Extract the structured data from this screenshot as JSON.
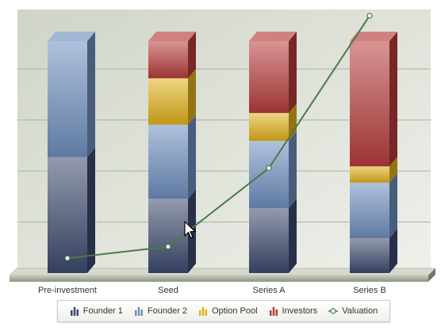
{
  "chart_data": {
    "type": "bar",
    "stacked": true,
    "style": "3d-stacked-columns-with-line-overlay",
    "categories": [
      "Pre-investment",
      "Seed",
      "Series A",
      "Series B"
    ],
    "series": [
      {
        "name": "Founder 1",
        "type": "bar",
        "color": "#3c4a6e",
        "values": [
          50,
          32,
          28,
          15
        ]
      },
      {
        "name": "Founder 2",
        "type": "bar",
        "color": "#6f8fbf",
        "values": [
          50,
          32,
          29,
          24
        ]
      },
      {
        "name": "Option Pool",
        "type": "bar",
        "color": "#e2b21c",
        "values": [
          0,
          20,
          12,
          7
        ]
      },
      {
        "name": "Investors",
        "type": "bar",
        "color": "#b83c3c",
        "values": [
          0,
          16,
          31,
          54
        ]
      },
      {
        "name": "Valuation",
        "type": "line",
        "color": "#4a7a46",
        "values": [
          3,
          8,
          42,
          108
        ]
      }
    ],
    "ylim": [
      0,
      100
    ],
    "line_ylim": [
      0,
      110
    ],
    "grid": true,
    "gridline_values": [
      22,
      44,
      66,
      88
    ],
    "legend_position": "bottom",
    "title": "",
    "xlabel": "",
    "ylabel": ""
  },
  "legend": {
    "items": [
      {
        "label": "Founder 1",
        "icon": "bar-chart-icon",
        "color": "#3c4a6e"
      },
      {
        "label": "Founder 2",
        "icon": "bar-chart-icon",
        "color": "#6f8fbf"
      },
      {
        "label": "Option Pool",
        "icon": "bar-chart-icon",
        "color": "#e2b21c"
      },
      {
        "label": "Investors",
        "icon": "bar-chart-icon",
        "color": "#b83c3c"
      },
      {
        "label": "Valuation",
        "icon": "line-marker-icon",
        "color": "#4a7a46"
      }
    ]
  },
  "cursor": {
    "icon": "mouse-pointer-icon"
  }
}
